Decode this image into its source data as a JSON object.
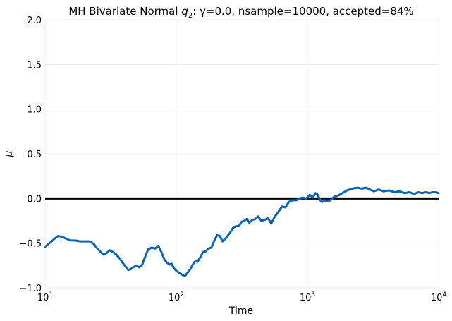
{
  "chart_data": {
    "type": "line",
    "title": "MH Bivariate Normal q2: γ=0.0, nsample=10000, accepted=84%",
    "title_parts": {
      "prefix": "MH Bivariate Normal ",
      "q": "q",
      "q_sub": "2",
      "suffix": ": γ=0.0, nsample=10000, accepted=84%"
    },
    "xlabel": "Time",
    "ylabel": "μ",
    "xscale": "log",
    "xlim": [
      10,
      10000
    ],
    "ylim": [
      -1.0,
      2.0
    ],
    "grid": true,
    "x_ticks": [
      {
        "value": 10,
        "base": "10",
        "exp": "1"
      },
      {
        "value": 100,
        "base": "10",
        "exp": "2"
      },
      {
        "value": 1000,
        "base": "10",
        "exp": "3"
      },
      {
        "value": 10000,
        "base": "10",
        "exp": "4"
      }
    ],
    "y_ticks": [
      {
        "value": -1.0,
        "label": "−1.0"
      },
      {
        "value": -0.5,
        "label": "−0.5"
      },
      {
        "value": 0.0,
        "label": "0.0"
      },
      {
        "value": 0.5,
        "label": "0.5"
      },
      {
        "value": 1.0,
        "label": "1.0"
      },
      {
        "value": 1.5,
        "label": "1.5"
      },
      {
        "value": 2.0,
        "label": "2.0"
      }
    ],
    "reference_line": {
      "y": 0.0,
      "color": "#000000"
    },
    "series": [
      {
        "color": "#0a64b4",
        "x": [
          10,
          11,
          11.8,
          12.6,
          13.5,
          14.5,
          15.5,
          17,
          18.5,
          20,
          22,
          23.5,
          25,
          26.5,
          28,
          29.5,
          31,
          33,
          35,
          37,
          39,
          41,
          43,
          45,
          47,
          49.5,
          52,
          55,
          58,
          61,
          65,
          69,
          73,
          77,
          81,
          85,
          89,
          92,
          96,
          100,
          105,
          110,
          116,
          122,
          128,
          135,
          140,
          145,
          152,
          160,
          168,
          176,
          185,
          195,
          205,
          215,
          225,
          240,
          255,
          270,
          285,
          300,
          315,
          330,
          345,
          360,
          380,
          400,
          420,
          445,
          470,
          500,
          530,
          560,
          600,
          640,
          680,
          720,
          770,
          820,
          870,
          920,
          980,
          1040,
          1100,
          1150,
          1200,
          1250,
          1300,
          1350,
          1400,
          1500,
          1600,
          1700,
          1800,
          1900,
          2000,
          2100,
          2200,
          2400,
          2600,
          2800,
          3000,
          3200,
          3500,
          3800,
          4200,
          4600,
          5000,
          5500,
          6000,
          6500,
          7000,
          7500,
          8000,
          8500,
          9000,
          9500,
          10000
        ],
        "y": [
          -0.54,
          -0.49,
          -0.45,
          -0.42,
          -0.43,
          -0.45,
          -0.47,
          -0.47,
          -0.48,
          -0.48,
          -0.48,
          -0.51,
          -0.56,
          -0.6,
          -0.63,
          -0.61,
          -0.58,
          -0.6,
          -0.63,
          -0.67,
          -0.72,
          -0.76,
          -0.8,
          -0.79,
          -0.77,
          -0.75,
          -0.77,
          -0.74,
          -0.65,
          -0.57,
          -0.55,
          -0.56,
          -0.53,
          -0.6,
          -0.68,
          -0.72,
          -0.74,
          -0.73,
          -0.78,
          -0.81,
          -0.83,
          -0.85,
          -0.87,
          -0.83,
          -0.79,
          -0.73,
          -0.7,
          -0.71,
          -0.66,
          -0.6,
          -0.59,
          -0.56,
          -0.55,
          -0.47,
          -0.41,
          -0.42,
          -0.48,
          -0.44,
          -0.39,
          -0.33,
          -0.31,
          -0.31,
          -0.26,
          -0.25,
          -0.23,
          -0.27,
          -0.24,
          -0.23,
          -0.2,
          -0.25,
          -0.24,
          -0.22,
          -0.28,
          -0.21,
          -0.15,
          -0.09,
          -0.1,
          -0.04,
          -0.02,
          -0.02,
          0.0,
          0.01,
          0.0,
          0.04,
          0.01,
          0.06,
          0.04,
          -0.02,
          -0.04,
          -0.02,
          -0.03,
          -0.02,
          0.02,
          0.03,
          0.05,
          0.07,
          0.09,
          0.1,
          0.11,
          0.12,
          0.11,
          0.12,
          0.1,
          0.08,
          0.1,
          0.08,
          0.09,
          0.07,
          0.08,
          0.06,
          0.07,
          0.05,
          0.07,
          0.06,
          0.07,
          0.06,
          0.07,
          0.07,
          0.06
        ]
      }
    ]
  }
}
